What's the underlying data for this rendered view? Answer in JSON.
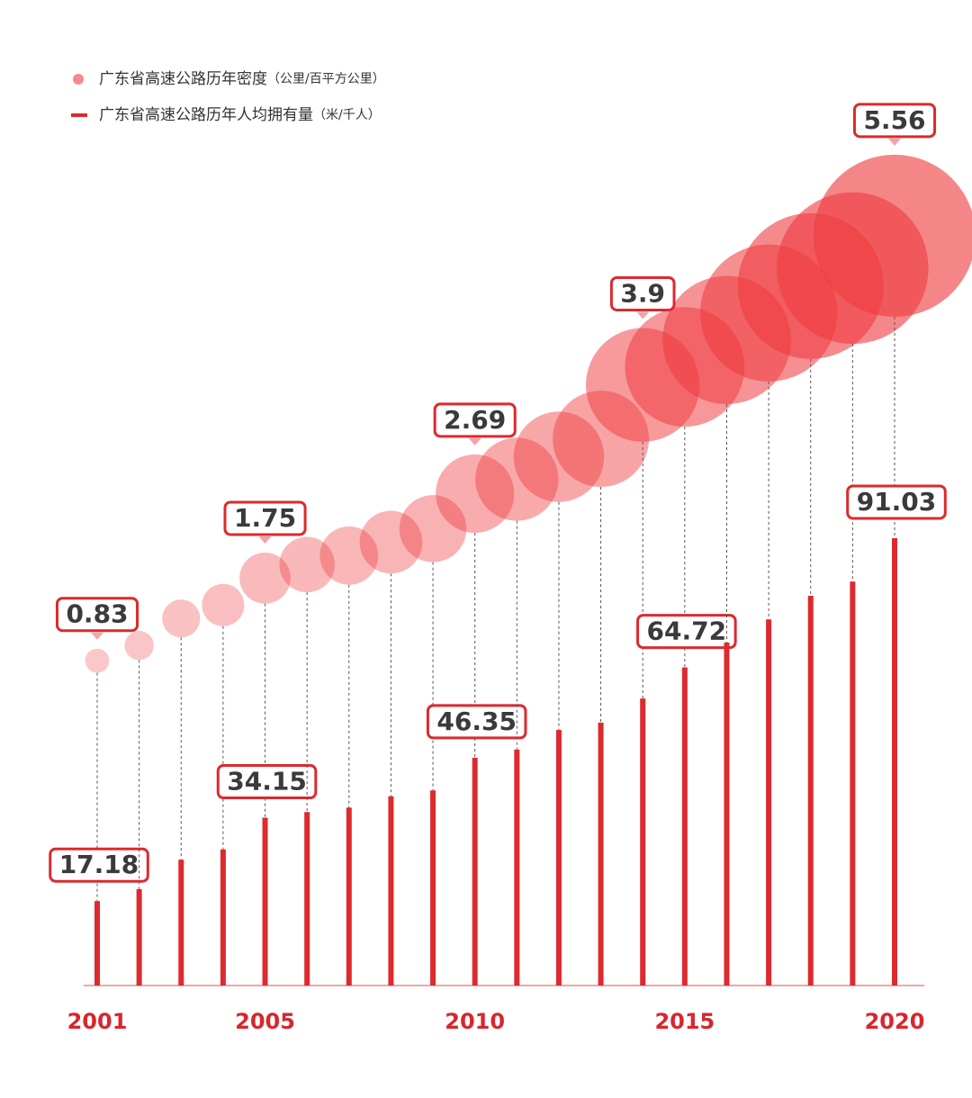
{
  "chart_data": {
    "type": "bar-bubble",
    "categories": [
      "2001",
      null,
      null,
      null,
      "2005",
      null,
      null,
      null,
      null,
      "2010",
      null,
      null,
      null,
      null,
      "2015",
      null,
      null,
      null,
      null,
      "2020"
    ],
    "ylim": [
      0,
      100
    ],
    "y2lim": [
      0,
      6
    ],
    "series": [
      {
        "name": "广东省高速公路历年密度",
        "unit": "（公里/百平方公里）",
        "type": "bubble",
        "axis": "y2",
        "color": "#ef3b3f",
        "values": [
          0.83,
          1.0,
          1.3,
          1.45,
          1.75,
          1.9,
          2.0,
          2.15,
          2.3,
          2.69,
          2.85,
          3.1,
          3.3,
          3.9,
          4.1,
          4.4,
          4.7,
          5.0,
          5.2,
          5.56
        ],
        "value_labels": [
          "0.83",
          null,
          null,
          null,
          "1.75",
          null,
          null,
          null,
          null,
          "2.69",
          null,
          null,
          null,
          "3.9",
          null,
          null,
          null,
          null,
          null,
          "5.56"
        ]
      },
      {
        "name": "广东省高速公路历年人均拥有量",
        "unit": "（米/千人）",
        "type": "bar",
        "color": "#dc2a2e",
        "values": [
          17.18,
          19.6,
          25.6,
          27.7,
          34.15,
          35.3,
          36.2,
          38.5,
          39.7,
          46.35,
          48.0,
          52.0,
          53.5,
          58.4,
          64.72,
          69.8,
          74.5,
          79.3,
          82.2,
          91.03
        ],
        "value_labels": [
          "17.18",
          null,
          null,
          null,
          "34.15",
          null,
          null,
          null,
          null,
          "46.35",
          null,
          null,
          null,
          null,
          "64.72",
          null,
          null,
          null,
          null,
          "91.03"
        ]
      }
    ]
  }
}
